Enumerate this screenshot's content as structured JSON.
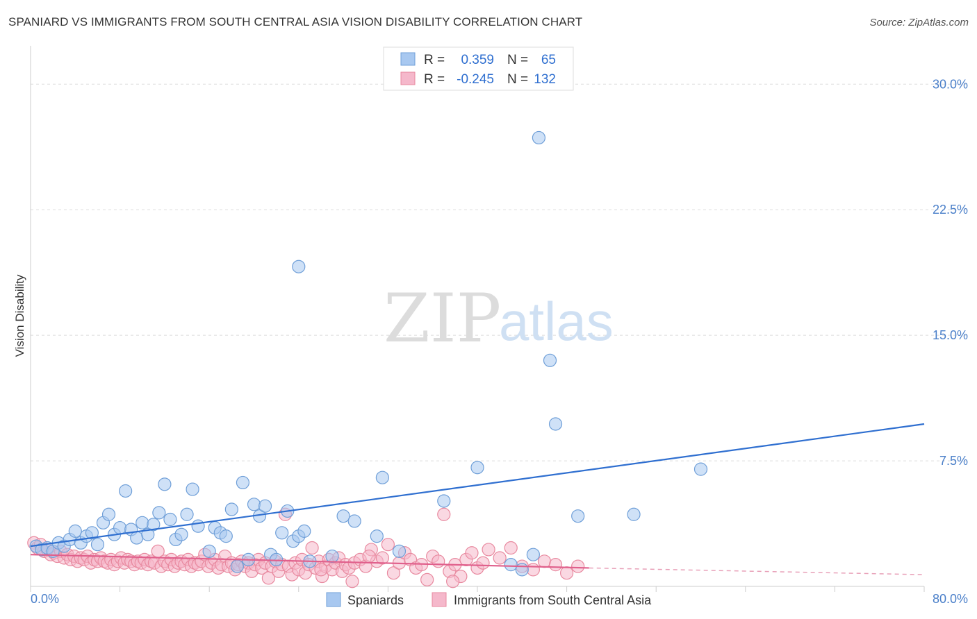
{
  "header": {
    "title": "SPANIARD VS IMMIGRANTS FROM SOUTH CENTRAL ASIA VISION DISABILITY CORRELATION CHART",
    "source": "Source: ZipAtlas.com"
  },
  "watermark": {
    "zip": "ZIP",
    "atlas": "atlas"
  },
  "chart_data": {
    "type": "scatter",
    "title": "SPANIARD VS IMMIGRANTS FROM SOUTH CENTRAL ASIA VISION DISABILITY CORRELATION CHART",
    "xlabel": "",
    "ylabel": "Vision Disability",
    "xlim": [
      0,
      80
    ],
    "ylim": [
      0,
      32
    ],
    "x_tick_labels": [
      "0.0%",
      "80.0%"
    ],
    "y_ticks": [
      7.5,
      15.0,
      22.5,
      30.0
    ],
    "y_tick_labels": [
      "7.5%",
      "15.0%",
      "22.5%",
      "30.0%"
    ],
    "grid": "horizontal dashed",
    "legend_top": {
      "rows": [
        {
          "r_label": "R =",
          "r_value": "0.359",
          "n_label": "N =",
          "n_value": "65",
          "color": "#a8c8f0"
        },
        {
          "r_label": "R =",
          "r_value": "-0.245",
          "n_label": "N =",
          "n_value": "132",
          "color": "#f5b8cb"
        }
      ]
    },
    "legend_bottom": [
      "Spaniards",
      "Immigrants from South Central Asia"
    ],
    "series": [
      {
        "name": "Spaniards",
        "color": "#a8c8f0",
        "stroke": "#6f9fd8",
        "trend": {
          "x": [
            0,
            80
          ],
          "y": [
            2.4,
            9.7
          ],
          "color": "#2f6fd0"
        },
        "points": [
          [
            0.5,
            2.4
          ],
          [
            1.0,
            2.2
          ],
          [
            1.5,
            2.3
          ],
          [
            2.0,
            2.1
          ],
          [
            2.5,
            2.6
          ],
          [
            3.0,
            2.4
          ],
          [
            3.5,
            2.8
          ],
          [
            4.0,
            3.3
          ],
          [
            4.5,
            2.6
          ],
          [
            5.0,
            3.0
          ],
          [
            5.5,
            3.2
          ],
          [
            6.0,
            2.5
          ],
          [
            6.5,
            3.8
          ],
          [
            7.0,
            4.3
          ],
          [
            7.5,
            3.1
          ],
          [
            8.0,
            3.5
          ],
          [
            8.5,
            5.7
          ],
          [
            9.0,
            3.4
          ],
          [
            9.5,
            2.9
          ],
          [
            10.0,
            3.8
          ],
          [
            10.5,
            3.1
          ],
          [
            11.0,
            3.7
          ],
          [
            11.5,
            4.4
          ],
          [
            12.0,
            6.1
          ],
          [
            12.5,
            4.0
          ],
          [
            13.0,
            2.8
          ],
          [
            13.5,
            3.1
          ],
          [
            14.0,
            4.3
          ],
          [
            14.5,
            5.8
          ],
          [
            15.0,
            3.6
          ],
          [
            16.0,
            2.1
          ],
          [
            16.5,
            3.5
          ],
          [
            17.0,
            3.2
          ],
          [
            17.5,
            3.0
          ],
          [
            18.0,
            4.6
          ],
          [
            18.5,
            1.2
          ],
          [
            19.0,
            6.2
          ],
          [
            19.5,
            1.6
          ],
          [
            20.0,
            4.9
          ],
          [
            20.5,
            4.2
          ],
          [
            21.0,
            4.8
          ],
          [
            21.5,
            1.9
          ],
          [
            22.0,
            1.6
          ],
          [
            22.5,
            3.2
          ],
          [
            23.0,
            4.5
          ],
          [
            23.5,
            2.7
          ],
          [
            24.0,
            3.0
          ],
          [
            24.5,
            3.3
          ],
          [
            25.0,
            1.5
          ],
          [
            24.0,
            19.1
          ],
          [
            27.0,
            1.8
          ],
          [
            28.0,
            4.2
          ],
          [
            29.0,
            3.9
          ],
          [
            31.0,
            3.0
          ],
          [
            31.5,
            6.5
          ],
          [
            33.0,
            2.1
          ],
          [
            37.0,
            5.1
          ],
          [
            40.0,
            7.1
          ],
          [
            43.0,
            1.3
          ],
          [
            44.0,
            1.0
          ],
          [
            45.0,
            1.9
          ],
          [
            45.5,
            26.8
          ],
          [
            46.5,
            13.5
          ],
          [
            47.0,
            9.7
          ],
          [
            49.0,
            4.2
          ],
          [
            54.0,
            4.3
          ],
          [
            60.0,
            7.0
          ]
        ]
      },
      {
        "name": "Immigrants from South Central Asia",
        "color": "#f5b8cb",
        "stroke": "#e8899f",
        "trend": {
          "x": [
            0,
            50
          ],
          "y": [
            1.9,
            1.1
          ],
          "color": "#e0608c"
        },
        "trend_dashed": {
          "x": [
            50,
            80
          ],
          "y": [
            1.1,
            0.7
          ],
          "color": "#e8a0b8"
        },
        "points": [
          [
            0.3,
            2.6
          ],
          [
            0.6,
            2.3
          ],
          [
            0.9,
            2.5
          ],
          [
            1.2,
            2.1
          ],
          [
            1.5,
            2.2
          ],
          [
            1.8,
            1.9
          ],
          [
            2.1,
            2.0
          ],
          [
            2.4,
            1.8
          ],
          [
            2.7,
            2.1
          ],
          [
            3.0,
            1.7
          ],
          [
            3.3,
            1.9
          ],
          [
            3.6,
            1.6
          ],
          [
            3.9,
            1.8
          ],
          [
            4.2,
            1.5
          ],
          [
            4.5,
            1.7
          ],
          [
            4.8,
            1.6
          ],
          [
            5.1,
            1.8
          ],
          [
            5.4,
            1.4
          ],
          [
            5.7,
            1.6
          ],
          [
            6.0,
            1.5
          ],
          [
            6.3,
            1.7
          ],
          [
            6.6,
            1.5
          ],
          [
            6.9,
            1.4
          ],
          [
            7.2,
            1.6
          ],
          [
            7.5,
            1.3
          ],
          [
            7.8,
            1.5
          ],
          [
            8.1,
            1.7
          ],
          [
            8.4,
            1.4
          ],
          [
            8.7,
            1.6
          ],
          [
            9.0,
            1.5
          ],
          [
            9.3,
            1.3
          ],
          [
            9.6,
            1.5
          ],
          [
            9.9,
            1.4
          ],
          [
            10.2,
            1.6
          ],
          [
            10.5,
            1.3
          ],
          [
            10.8,
            1.5
          ],
          [
            11.1,
            1.4
          ],
          [
            11.4,
            2.1
          ],
          [
            11.7,
            1.2
          ],
          [
            12.0,
            1.5
          ],
          [
            12.3,
            1.3
          ],
          [
            12.6,
            1.6
          ],
          [
            12.9,
            1.2
          ],
          [
            13.2,
            1.4
          ],
          [
            13.5,
            1.5
          ],
          [
            13.8,
            1.3
          ],
          [
            14.1,
            1.6
          ],
          [
            14.4,
            1.2
          ],
          [
            14.7,
            1.4
          ],
          [
            15.0,
            1.3
          ],
          [
            15.3,
            1.5
          ],
          [
            15.6,
            1.9
          ],
          [
            15.9,
            1.2
          ],
          [
            16.2,
            1.4
          ],
          [
            16.5,
            1.6
          ],
          [
            16.8,
            1.1
          ],
          [
            17.1,
            1.3
          ],
          [
            17.4,
            1.8
          ],
          [
            17.7,
            1.2
          ],
          [
            18.0,
            1.4
          ],
          [
            18.3,
            1.0
          ],
          [
            18.6,
            1.3
          ],
          [
            18.9,
            1.5
          ],
          [
            19.2,
            1.2
          ],
          [
            19.5,
            1.4
          ],
          [
            19.8,
            0.9
          ],
          [
            20.1,
            1.3
          ],
          [
            20.4,
            1.6
          ],
          [
            20.7,
            1.1
          ],
          [
            21.0,
            1.4
          ],
          [
            21.3,
            0.5
          ],
          [
            21.6,
            1.2
          ],
          [
            21.9,
            1.5
          ],
          [
            22.2,
            0.9
          ],
          [
            22.5,
            1.3
          ],
          [
            22.8,
            4.3
          ],
          [
            23.1,
            1.2
          ],
          [
            23.4,
            0.7
          ],
          [
            23.7,
            1.4
          ],
          [
            24.0,
            1.0
          ],
          [
            24.3,
            1.6
          ],
          [
            24.6,
            0.8
          ],
          [
            24.9,
            1.3
          ],
          [
            25.2,
            2.3
          ],
          [
            25.5,
            1.1
          ],
          [
            25.8,
            1.5
          ],
          [
            26.1,
            0.6
          ],
          [
            26.4,
            1.2
          ],
          [
            26.7,
            1.6
          ],
          [
            27.0,
            1.0
          ],
          [
            27.3,
            1.4
          ],
          [
            27.6,
            1.7
          ],
          [
            27.9,
            0.9
          ],
          [
            28.2,
            1.3
          ],
          [
            28.5,
            1.1
          ],
          [
            29.0,
            1.4
          ],
          [
            29.5,
            1.6
          ],
          [
            30.0,
            1.2
          ],
          [
            30.5,
            2.2
          ],
          [
            31.0,
            1.5
          ],
          [
            31.5,
            1.7
          ],
          [
            32.0,
            2.5
          ],
          [
            32.5,
            0.8
          ],
          [
            33.0,
            1.4
          ],
          [
            33.5,
            2.0
          ],
          [
            34.0,
            1.6
          ],
          [
            34.5,
            1.1
          ],
          [
            35.0,
            1.3
          ],
          [
            35.5,
            0.4
          ],
          [
            36.0,
            1.8
          ],
          [
            36.5,
            1.5
          ],
          [
            37.0,
            4.3
          ],
          [
            37.5,
            0.9
          ],
          [
            38.0,
            1.3
          ],
          [
            38.5,
            0.6
          ],
          [
            39.0,
            1.6
          ],
          [
            39.5,
            2.0
          ],
          [
            40.0,
            1.1
          ],
          [
            40.5,
            1.4
          ],
          [
            41.0,
            2.2
          ],
          [
            42.0,
            1.7
          ],
          [
            43.0,
            2.3
          ],
          [
            44.0,
            1.2
          ],
          [
            45.0,
            1.0
          ],
          [
            46.0,
            1.5
          ],
          [
            47.0,
            1.3
          ],
          [
            48.0,
            0.8
          ],
          [
            49.0,
            1.2
          ],
          [
            26.0,
            1.0
          ],
          [
            28.8,
            0.3
          ],
          [
            37.8,
            0.3
          ],
          [
            30.3,
            1.8
          ]
        ]
      }
    ]
  }
}
